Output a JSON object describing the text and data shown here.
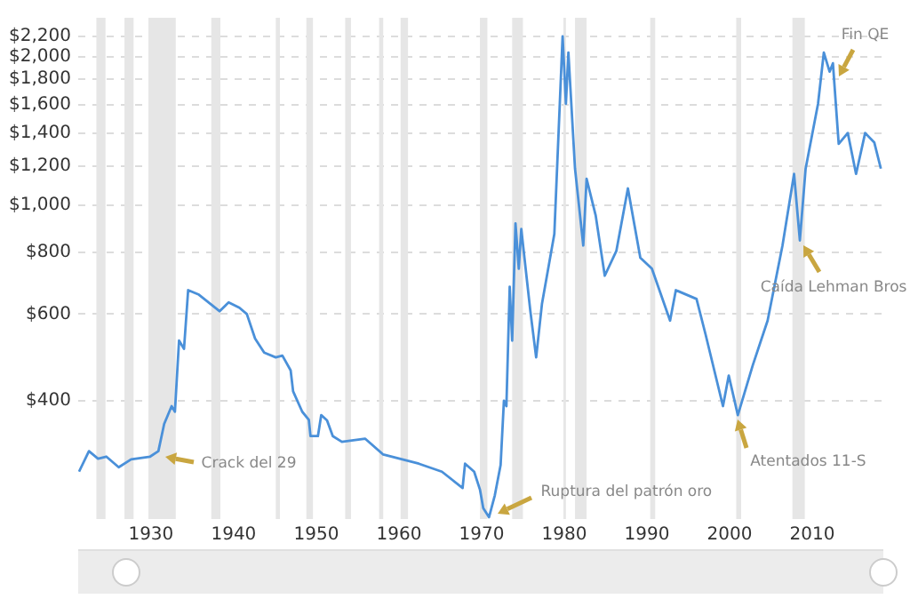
{
  "chart_data": {
    "type": "line",
    "color": "#4a90d9",
    "log": "y",
    "grid": "y",
    "legend": false,
    "marker": "none",
    "line_style": "solid",
    "x": [
      1921.3,
      1922.5,
      1923.6,
      1924.6,
      1926.1,
      1927.6,
      1929.9,
      1930.9,
      1931.6,
      1932.5,
      1932.9,
      1933.4,
      1934.0,
      1934.5,
      1935.8,
      1938.3,
      1939.4,
      1940.7,
      1941.6,
      1942.6,
      1943.7,
      1945.1,
      1945.9,
      1946.9,
      1947.2,
      1948.3,
      1949.1,
      1949.3,
      1950.2,
      1950.6,
      1951.3,
      1952.0,
      1953.1,
      1955.9,
      1958.1,
      1962.4,
      1965.2,
      1967.7,
      1968.0,
      1969.1,
      1969.8,
      1970.2,
      1970.9,
      1971.6,
      1972.3,
      1972.7,
      1973.0,
      1973.4,
      1973.7,
      1974.1,
      1974.5,
      1974.8,
      1975.9,
      1976.6,
      1977.3,
      1978.8,
      1979.8,
      1980.2,
      1980.5,
      1981.3,
      1982.3,
      1982.7,
      1983.8,
      1984.9,
      1986.3,
      1987.7,
      1989.2,
      1990.6,
      1992.8,
      1993.5,
      1996.0,
      1997.1,
      1999.2,
      1999.9,
      2001.0,
      2002.8,
      2004.6,
      2006.4,
      2007.8,
      2008.5,
      2009.2,
      2010.7,
      2011.4,
      2012.1,
      2012.5,
      2013.2,
      2014.3,
      2015.3,
      2016.4,
      2017.5,
      2018.3
    ],
    "values": [
      287,
      316,
      305,
      308,
      293,
      304,
      308,
      316,
      359,
      390,
      380,
      530,
      510,
      671,
      657,
      608,
      634,
      618,
      600,
      535,
      501,
      490,
      494,
      461,
      418,
      380,
      366,
      339,
      339,
      374,
      365,
      339,
      330,
      335,
      311,
      298,
      287,
      266,
      298,
      287,
      264,
      242,
      232,
      257,
      296,
      400,
      390,
      682,
      530,
      917,
      742,
      893,
      608,
      490,
      629,
      873,
      2200,
      1605,
      2040,
      1185,
      827,
      1130,
      952,
      718,
      806,
      1080,
      781,
      742,
      582,
      671,
      644,
      545,
      390,
      450,
      374,
      472,
      582,
      827,
      1156,
      847,
      1185,
      1605,
      2040,
      1865,
      1940,
      1330,
      1400,
      1156,
      1400,
      1340,
      1185
    ],
    "xlim": [
      1921.2,
      2018.6
    ],
    "xticks": [
      1930,
      1940,
      1950,
      1960,
      1970,
      1980,
      1990,
      2000,
      2010
    ],
    "ylim": [
      230,
      2400
    ],
    "yticks": [
      {
        "value": 400,
        "label": "$400"
      },
      {
        "value": 600,
        "label": "$600"
      },
      {
        "value": 800,
        "label": "$800"
      },
      {
        "value": 1000,
        "label": "$1,000"
      },
      {
        "value": 1200,
        "label": "$1,200"
      },
      {
        "value": 1400,
        "label": "$1,400"
      },
      {
        "value": 1600,
        "label": "$1,600"
      },
      {
        "value": 1800,
        "label": "$1,800"
      },
      {
        "value": 2000,
        "label": "$2,000"
      },
      {
        "value": 2200,
        "label": "$2,200"
      }
    ],
    "bands": [
      {
        "axis": "x",
        "from": 1923.4,
        "to": 1924.5,
        "color": "#e6e6e6"
      },
      {
        "axis": "x",
        "from": 1926.8,
        "to": 1927.9,
        "color": "#e6e6e6"
      },
      {
        "axis": "x",
        "from": 1929.7,
        "to": 1933.0,
        "color": "#e6e6e6"
      },
      {
        "axis": "x",
        "from": 1937.3,
        "to": 1938.4,
        "color": "#e6e6e6"
      },
      {
        "axis": "x",
        "from": 1945.1,
        "to": 1945.6,
        "color": "#e6e6e6"
      },
      {
        "axis": "x",
        "from": 1948.8,
        "to": 1949.6,
        "color": "#e6e6e6"
      },
      {
        "axis": "x",
        "from": 1953.5,
        "to": 1954.2,
        "color": "#e6e6e6"
      },
      {
        "axis": "x",
        "from": 1957.6,
        "to": 1958.1,
        "color": "#e6e6e6"
      },
      {
        "axis": "x",
        "from": 1960.2,
        "to": 1961.1,
        "color": "#e6e6e6"
      },
      {
        "axis": "x",
        "from": 1969.8,
        "to": 1970.7,
        "color": "#e6e6e6"
      },
      {
        "axis": "x",
        "from": 1973.7,
        "to": 1975.0,
        "color": "#e6e6e6"
      },
      {
        "axis": "x",
        "from": 1979.9,
        "to": 1980.2,
        "color": "#e6e6e6"
      },
      {
        "axis": "x",
        "from": 1981.3,
        "to": 1982.7,
        "color": "#e6e6e6"
      },
      {
        "axis": "x",
        "from": 1990.4,
        "to": 1991.0,
        "color": "#e6e6e6"
      },
      {
        "axis": "x",
        "from": 2000.8,
        "to": 2001.4,
        "color": "#e6e6e6"
      },
      {
        "axis": "x",
        "from": 2007.6,
        "to": 2009.1,
        "color": "#e6e6e6"
      }
    ],
    "annotations": [
      {
        "text": "Crack del 29",
        "x": 1931.8,
        "y": 308
      },
      {
        "text": "Ruptura del patrón oro",
        "x": 1972.0,
        "y": 236
      },
      {
        "text": "Atentados 11-S",
        "x": 2001.0,
        "y": 365
      },
      {
        "text": "Caída Lehman Bros",
        "x": 2008.9,
        "y": 827
      },
      {
        "text": "Fin QE",
        "x": 2013.3,
        "y": 1830
      }
    ]
  }
}
